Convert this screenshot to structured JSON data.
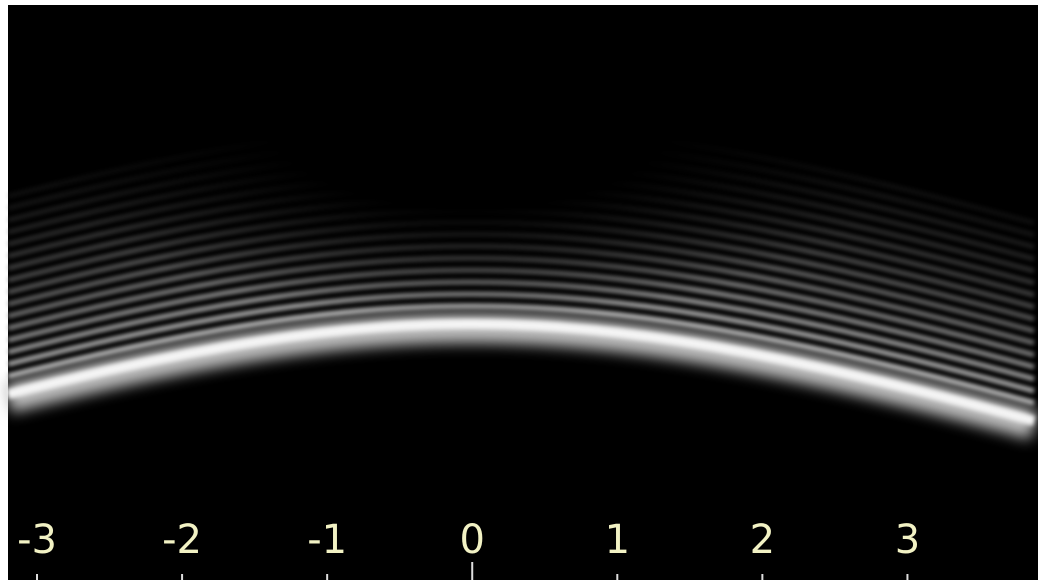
{
  "chart_data": {
    "type": "image",
    "xlim": [
      -3.2,
      3.9
    ],
    "xticks": [
      -3,
      -2,
      -1,
      0,
      1,
      2,
      3
    ]
  }
}
